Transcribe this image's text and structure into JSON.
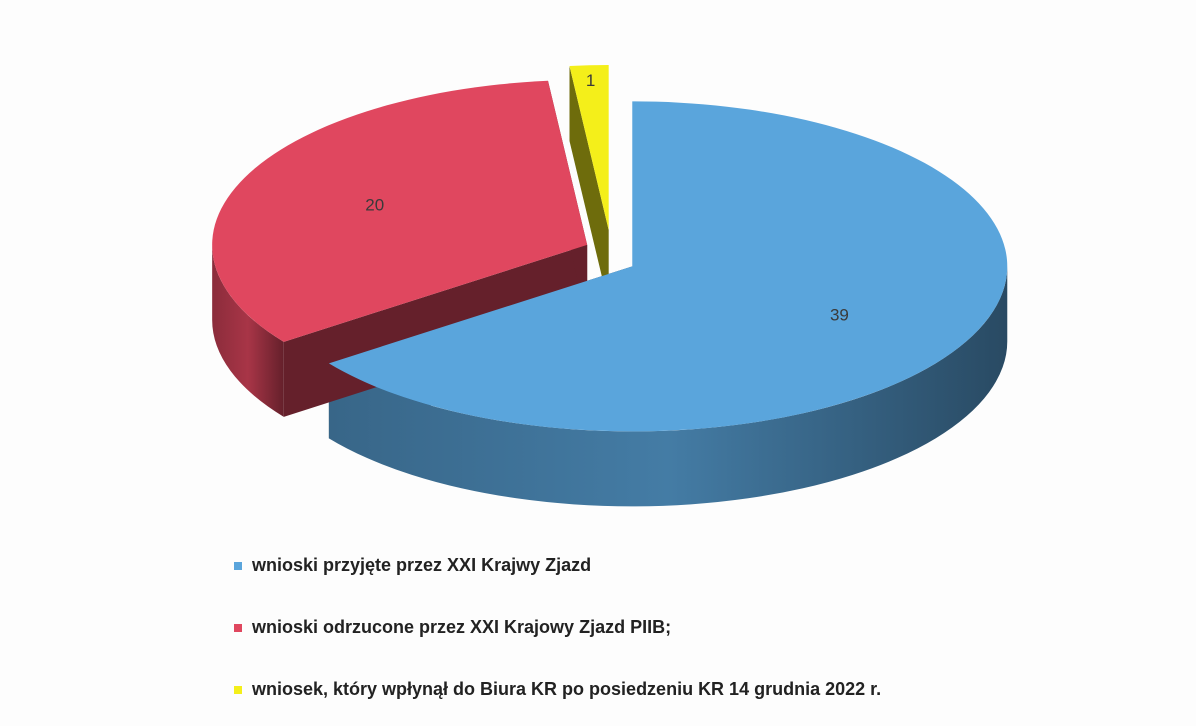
{
  "chart_data": {
    "type": "pie",
    "categories": [
      "wnioski przyjęte przez XXI Krajwy Zjazd",
      "wnioski odrzucone przez XXI  Krajowy Zjazd PIIB;",
      "wniosek, który wpłynął do Biura KR po posiedzeniu KR 14 grudnia 2022 r."
    ],
    "values": [
      39,
      20,
      1
    ],
    "colors": [
      "#5aa5dc",
      "#e0475f",
      "#f4ef1a"
    ],
    "legend": "bottom"
  }
}
